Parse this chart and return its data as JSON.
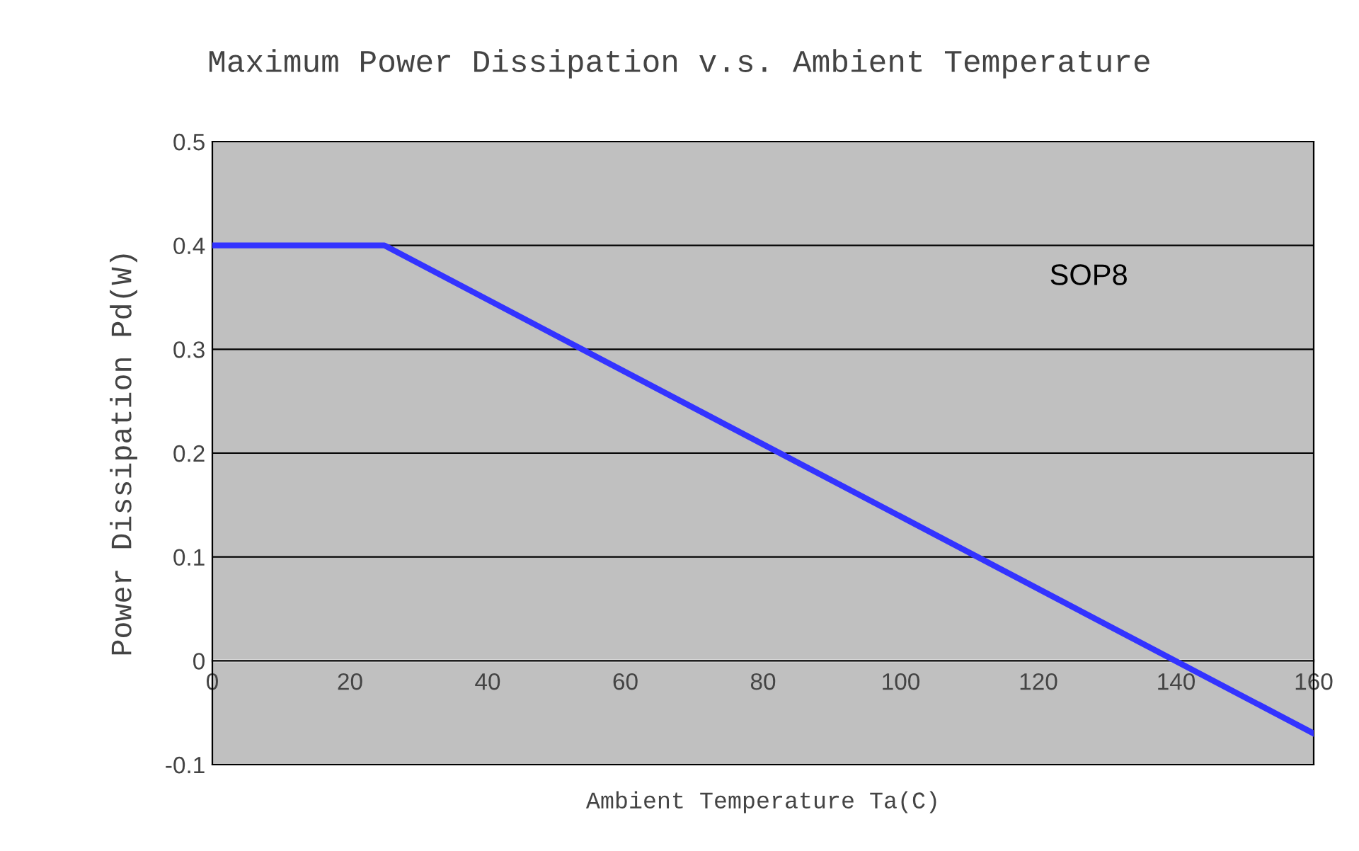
{
  "chart_data": {
    "type": "line",
    "title": "Maximum Power Dissipation v.s. Ambient Temperature",
    "xlabel": "Ambient Temperature Ta(C)",
    "ylabel": "Power Dissipation Pd(W)",
    "series": [
      {
        "name": "SOP8",
        "color": "#3333ff",
        "x": [
          0,
          25,
          160
        ],
        "values": [
          0.4,
          0.4,
          -0.07
        ]
      }
    ],
    "xlim": [
      0,
      160
    ],
    "xticks": [
      0,
      20,
      40,
      60,
      80,
      100,
      120,
      140,
      160
    ],
    "ylim": [
      -0.1,
      0.5
    ],
    "yticks": [
      -0.1,
      0,
      0.1,
      0.2,
      0.3,
      0.4,
      0.5
    ],
    "grid": "y",
    "legend": false,
    "marker": "none",
    "line_style": "solid"
  }
}
